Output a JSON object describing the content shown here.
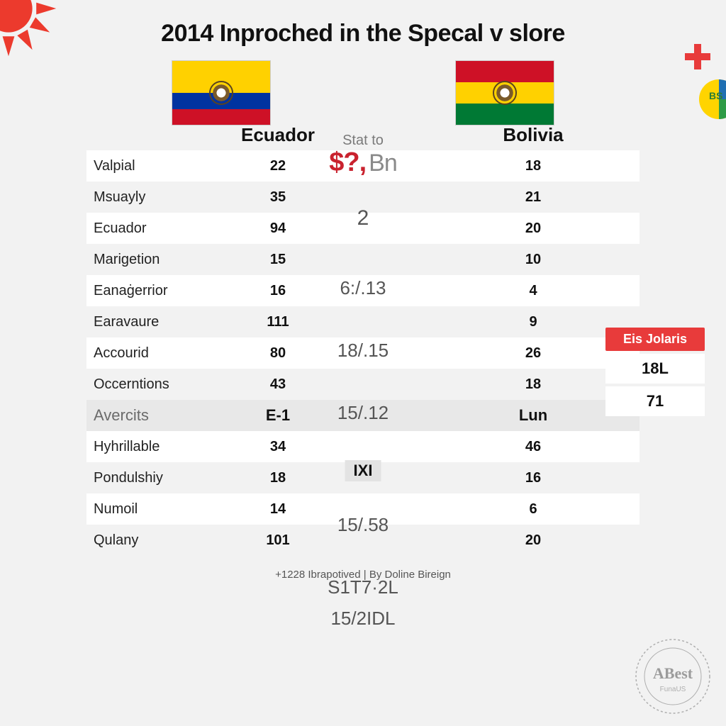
{
  "page": {
    "title": "2014 Inproched in the Specal v slore",
    "footer": "+1228  ‎Ibrapotived | By Doline Bireign",
    "background_color": "#f2f2f2"
  },
  "decor": {
    "sun_color": "#ec3a2d",
    "cross_color": "#e83b3b",
    "badge_colors": {
      "top": "#ffd400",
      "right": "#2e9b46",
      "bottom": "#1f6fb2",
      "left": "#e83b3b",
      "text": "BS"
    }
  },
  "flags": {
    "left": {
      "name": "Ecuador",
      "stripes": [
        {
          "color": "#ffd100",
          "height_pct": 50
        },
        {
          "color": "#0033a0",
          "height_pct": 25
        },
        {
          "color": "#ce1126",
          "height_pct": 25
        }
      ],
      "has_emblem": true
    },
    "right": {
      "name": "Bolivia",
      "stripes": [
        {
          "color": "#ce1126",
          "height_pct": 33.4
        },
        {
          "color": "#ffd100",
          "height_pct": 33.3
        },
        {
          "color": "#007934",
          "height_pct": 33.3
        }
      ],
      "has_emblem": true
    }
  },
  "headers": {
    "stat_to": "Stat to",
    "middle_big": "$?,",
    "middle_big_suffix": "Bn",
    "left_col": "Ecuador",
    "right_col": "Bolivia"
  },
  "middle_column": {
    "values": [
      "2",
      "6:/.13",
      "18/.15",
      "15/.12",
      "IXI",
      "15/.58",
      "S1T7·2L",
      "15/2IDL"
    ]
  },
  "rows": [
    {
      "label": "Valpial",
      "left": "22",
      "right": "18",
      "bg": "alt"
    },
    {
      "label": "Msuayly",
      "left": "35",
      "right": "21",
      "bg": "plain"
    },
    {
      "label": "Ecuador",
      "left": "94",
      "right": "20",
      "bg": "alt"
    },
    {
      "label": "Marigetion",
      "left": "15",
      "right": "10",
      "bg": "plain"
    },
    {
      "label": "Eanaġerrior",
      "left": "16",
      "right": "4",
      "bg": "alt"
    },
    {
      "label": "Earavaure",
      "left": "111",
      "right": "9",
      "bg": "plain"
    },
    {
      "label": "Accourid",
      "left": "80",
      "right": "26",
      "bg": "alt"
    },
    {
      "label": "Occerntions",
      "left": "43",
      "right": "18",
      "bg": "plain"
    },
    {
      "label": "Avercits",
      "left": "E-1",
      "right": "Lun",
      "bg": "section"
    },
    {
      "label": "Hyhrillable",
      "left": "34",
      "right": "46",
      "bg": "alt"
    },
    {
      "label": "Pondulshiy",
      "left": "18",
      "right": "16",
      "bg": "plain"
    },
    {
      "label": "Numoil",
      "left": "14",
      "right": "6",
      "bg": "alt"
    },
    {
      "label": "Qulany",
      "left": "101",
      "right": "20",
      "bg": "plain"
    }
  ],
  "side_box": {
    "button_label": "Eis Jolaris",
    "values": [
      "18L",
      "71"
    ],
    "button_color": "#e83b3b"
  },
  "stamp": {
    "main": "ABest",
    "sub": "FunaUS"
  },
  "style": {
    "title_fontsize": 34,
    "header_fontsize": 26,
    "row_label_fontsize": 20,
    "row_value_fontsize": 20,
    "row_value_weight": 800,
    "alt_row_bg": "#ffffff",
    "section_row_bg": "#e8e8e8",
    "red_accent": "#c9222e"
  }
}
